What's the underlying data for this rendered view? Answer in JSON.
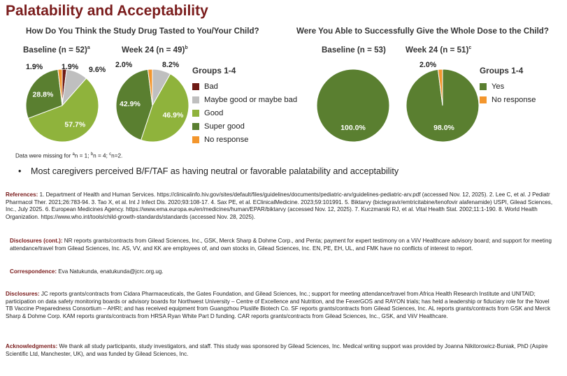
{
  "title": "Palatability and Acceptability",
  "panel_left": {
    "heading": "How Do You Think the Study Drug Tasted to You/Your Child?",
    "baseline_label": "Baseline (n = 52)",
    "baseline_sup": "a",
    "week24_label": "Week 24 (n = 49)",
    "week24_sup": "b"
  },
  "panel_right": {
    "heading": "Were You Able to Successfully Give the Whole Dose to the Child?",
    "baseline_label": "Baseline (n = 53)",
    "week24_label": "Week 24 (n = 51)",
    "week24_sup": "c"
  },
  "legend_left": {
    "title": "Groups 1-4",
    "items": [
      {
        "label": "Bad",
        "color": "#6e1a14"
      },
      {
        "label": "Maybe good or maybe bad",
        "color": "#bfbfbf"
      },
      {
        "label": "Good",
        "color": "#8fb33c"
      },
      {
        "label": "Super good",
        "color": "#5a7f30"
      },
      {
        "label": "No response",
        "color": "#f3962d"
      }
    ]
  },
  "legend_right": {
    "title": "Groups 1-4",
    "items": [
      {
        "label": "Yes",
        "color": "#5a7f30"
      },
      {
        "label": "No response",
        "color": "#f3962d"
      }
    ]
  },
  "chart_data": [
    {
      "type": "pie",
      "title": "Baseline (n = 52)",
      "categories": [
        "Bad",
        "Maybe good or maybe bad",
        "Good",
        "Super good",
        "No response"
      ],
      "values": [
        1.9,
        9.6,
        57.7,
        28.8,
        1.9
      ],
      "value_labels": [
        "1.9%",
        "9.6%",
        "57.7%",
        "28.8%",
        "1.9%"
      ],
      "colors": [
        "#6e1a14",
        "#bfbfbf",
        "#8fb33c",
        "#5a7f30",
        "#f3962d"
      ]
    },
    {
      "type": "pie",
      "title": "Week 24 (n = 49)",
      "categories": [
        "Bad",
        "Maybe good or maybe bad",
        "Good",
        "Super good",
        "No response"
      ],
      "values": [
        0,
        8.2,
        46.9,
        42.9,
        2.0
      ],
      "value_labels": [
        "",
        "8.2%",
        "46.9%",
        "42.9%",
        "2.0%"
      ],
      "colors": [
        "#6e1a14",
        "#bfbfbf",
        "#8fb33c",
        "#5a7f30",
        "#f3962d"
      ]
    },
    {
      "type": "pie",
      "title": "Baseline (n = 53)",
      "categories": [
        "Yes",
        "No response"
      ],
      "values": [
        100.0,
        0
      ],
      "value_labels": [
        "100.0%",
        ""
      ],
      "colors": [
        "#5a7f30",
        "#f3962d"
      ]
    },
    {
      "type": "pie",
      "title": "Week 24 (n = 51)",
      "categories": [
        "Yes",
        "No response"
      ],
      "values": [
        98.0,
        2.0
      ],
      "value_labels": [
        "98.0%",
        "2.0%"
      ],
      "colors": [
        "#5a7f30",
        "#f3962d"
      ]
    }
  ],
  "missing_note": {
    "prefix": "Data were missing for ",
    "a": "a",
    "a_text": "n = 1; ",
    "b": "b",
    "b_text": "n = 4; ",
    "c": "c",
    "c_text": "n=2."
  },
  "bullet": "Most caregivers perceived B/F/TAF as having neutral or favorable palatability and acceptability",
  "references": {
    "label": "References:",
    "text": " 1. Department of Health and Human Services. https://clinicalinfo.hiv.gov/sites/default/files/guidelines/documents/pediatric-arv/guidelines-pediatric-arv.pdf (accessed Nov. 12, 2025). 2. Lee C, et al. J Pediatr Pharmacol Ther. 2021;26:783-94. 3. Tao X, et al. Int J Infect Dis. 2020;93:108-17. 4. Sax PE, et al. EClinicalMedicine. 2023;59:101991. 5. Biktarvy (bictegravir/emtricitabine/tenofovir alafenamide) USPI, Gilead Sciences, Inc., July 2025. 6. European Medicines Agency. https://www.ema.europa.eu/en/medicines/human/EPAR/biktarvy (accessed Nov. 12, 2025). 7. Kuczmarski RJ, et al. Vital Health Stat. 2002;11:1-190. 8. World Health Organization. https://www.who.int/tools/child-growth-standards/standards (accessed Nov. 28, 2025)."
  },
  "disclosures_cont": {
    "label": "Disclosures (cont.):",
    "text": " NR reports grants/contracts from Gilead Sciences, Inc., GSK, Merck Sharp & Dohme Corp., and Penta; payment for expert testimony on a ViiV Healthcare advisory board; and support for meeting attendance/travel from Gilead Sciences, Inc. AS, VV, and KK are employees of, and own stocks in, Gilead Sciences, Inc. EN, PE, EH, UL, and FMK have no conflicts of interest to report."
  },
  "correspondence": {
    "label": "Correspondence:",
    "text": " Eva Natukunda, enatukunda@jcrc.org.ug."
  },
  "disclosures": {
    "label": "Disclosures:",
    "text": " JC reports grants/contracts from Cidara Pharmaceuticals, the Gates Foundation, and Gilead Sciences, Inc.; support for meeting attendance/travel from Africa Health Research Institute and UNITAID; participation on data safety monitoring boards or advisory boards for Northwest University – Centre of Excellence and Nutrition, and the FexerGOS and RAYON trials; has held a leadership or fiduciary role for the Novel TB Vaccine Preparedness Consortium – AHRI; and has received equipment from Guangzhou Pluslife Biotech Co. SF reports grants/contracts from Gilead Sciences, Inc. AL reports grants/contracts from GSK and Merck Sharp & Dohme Corp. KAM reports grants/contracts from HRSA Ryan White Part D funding. CAR reports grants/contracts from Gilead Sciences, Inc., GSK, and ViiV Healthcare."
  },
  "acknowledgments": {
    "label": "Acknowledgments:",
    "text": " We thank all study participants, study investigators, and staff. This study was sponsored by Gilead Sciences, Inc. Medical writing support was provided by Joanna Nikitorowicz-Buniak, PhD (Aspire Scientific Ltd, Manchester, UK), and was funded by Gilead Sciences, Inc."
  }
}
